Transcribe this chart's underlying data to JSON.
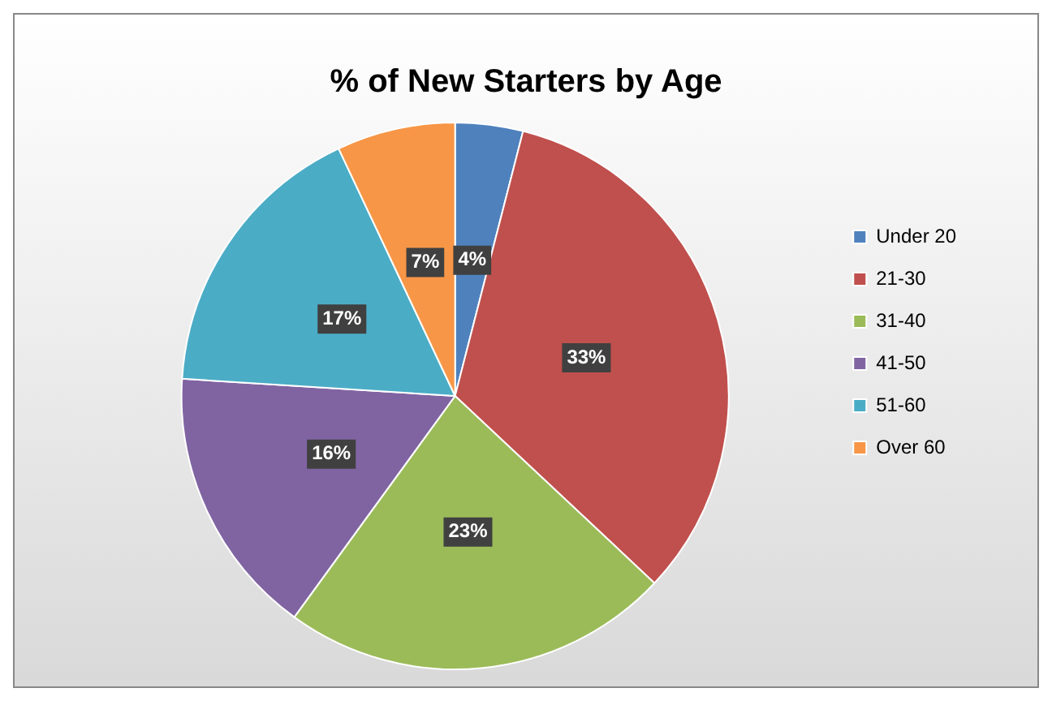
{
  "chart_data": {
    "type": "pie",
    "title": "% of New Starters by Age",
    "categories": [
      "Under 20",
      "21-30",
      "31-40",
      "41-50",
      "51-60",
      "Over 60"
    ],
    "values": [
      4,
      33,
      23,
      16,
      17,
      7
    ],
    "value_labels": [
      "4%",
      "33%",
      "23%",
      "16%",
      "17%",
      "7%"
    ],
    "colors": [
      "#4f81bd",
      "#c0504d",
      "#9bbb59",
      "#8064a2",
      "#4bacc6",
      "#f79646"
    ],
    "legend": "right"
  }
}
